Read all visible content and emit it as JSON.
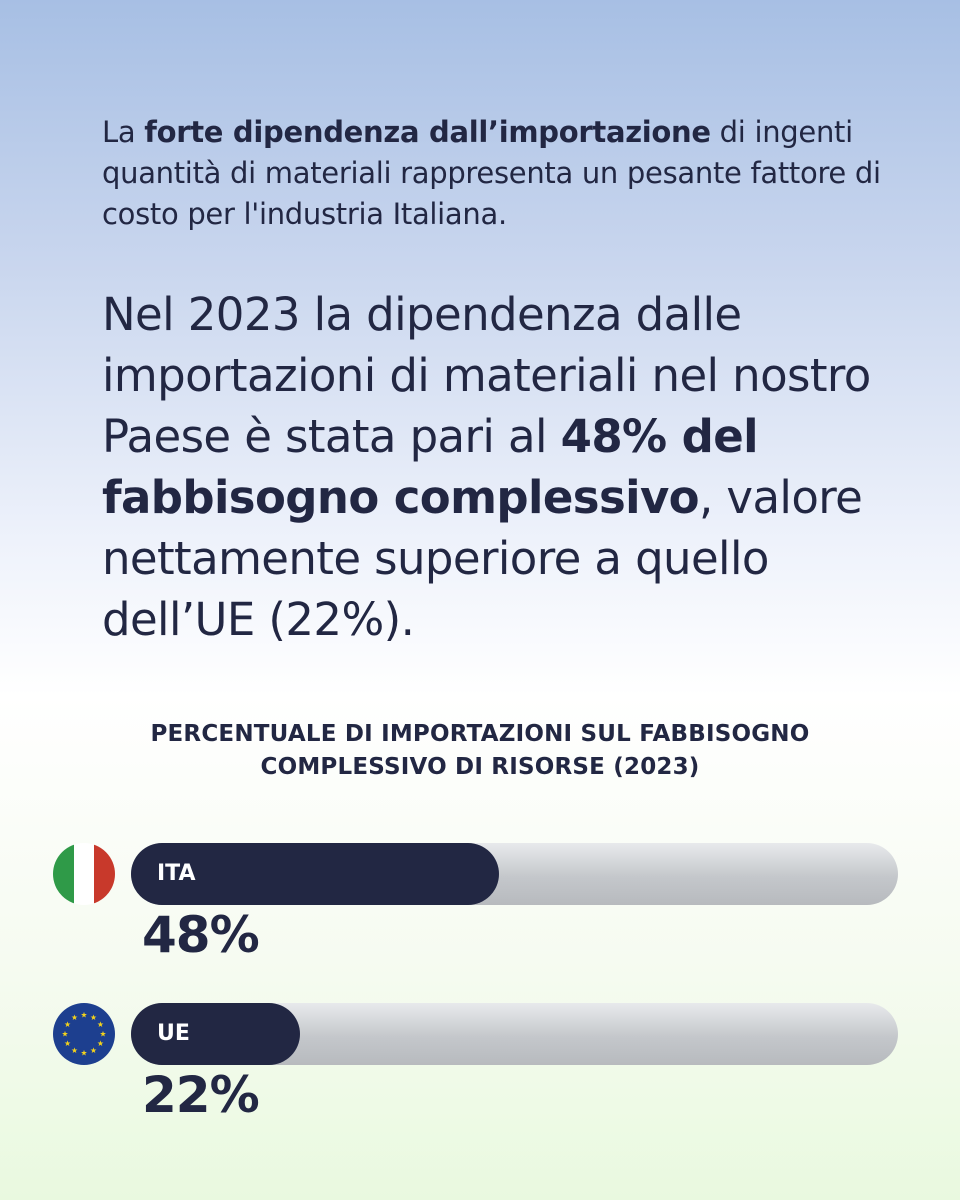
{
  "intro": {
    "prefix": "La ",
    "bold": "forte dipendenza dall’importazione",
    "suffix": " di ingenti quantità di materiali rappresenta un pesante fattore di costo per l'industria Italiana."
  },
  "lead": {
    "prefix": "Nel 2023 la dipendenza dalle importazioni di materiali nel nostro Paese è stata pari al ",
    "bold": "48% del fabbisogno complessivo",
    "suffix": ", valore nettamente superiore a quello dell’UE (22%)."
  },
  "chart_data": {
    "type": "bar",
    "orientation": "horizontal",
    "title": "PERCENTUALE DI IMPORTAZIONI SUL FABBISOGNO COMPLESSIVO DI RISORSE (2023)",
    "unit": "%",
    "xlim": [
      0,
      100
    ],
    "categories": [
      "ITA",
      "UE"
    ],
    "values": [
      48,
      22
    ],
    "value_labels": [
      "48%",
      "22%"
    ],
    "grid": false,
    "flags": [
      "italy-flag-icon",
      "eu-flag-icon"
    ]
  },
  "colors": {
    "bar_fill": "#222743",
    "track": "#c4c7cb",
    "text": "#222743",
    "italy_green": "#2f9a48",
    "italy_red": "#c8392b",
    "eu_blue": "#1d3f8f",
    "eu_star": "#f3d21c"
  }
}
